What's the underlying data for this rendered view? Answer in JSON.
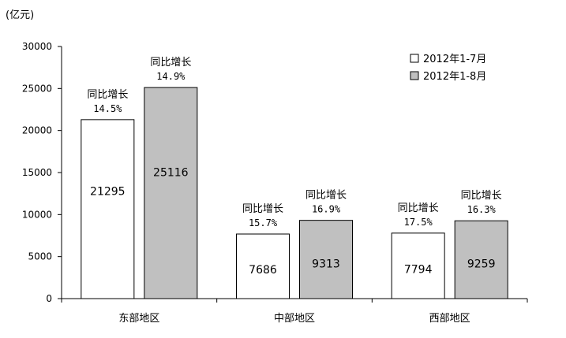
{
  "chart_data": {
    "type": "bar",
    "unit_label": "(亿元)",
    "categories": [
      "东部地区",
      "中部地区",
      "西部地区"
    ],
    "ylim": [
      0,
      30000
    ],
    "yticks": [
      0,
      5000,
      10000,
      15000,
      20000,
      25000,
      30000
    ],
    "grid": false,
    "legend_position": "top-right",
    "series": [
      {
        "name": "2012年1-7月",
        "color": "#ffffff",
        "values": [
          21295,
          7686,
          7794
        ],
        "growth_labels": [
          {
            "line1": "同比增长",
            "line2": "14.5%"
          },
          {
            "line1": "同比增长",
            "line2": "15.7%"
          },
          {
            "line1": "同比增长",
            "line2": "17.5%"
          }
        ]
      },
      {
        "name": "2012年1-8月",
        "color": "#c0c0c0",
        "values": [
          25116,
          9313,
          9259
        ],
        "growth_labels": [
          {
            "line1": "同比增长",
            "line2": "14.9%"
          },
          {
            "line1": "同比增长",
            "line2": "16.9%"
          },
          {
            "line1": "同比增长",
            "line2": "16.3%"
          }
        ]
      }
    ]
  }
}
